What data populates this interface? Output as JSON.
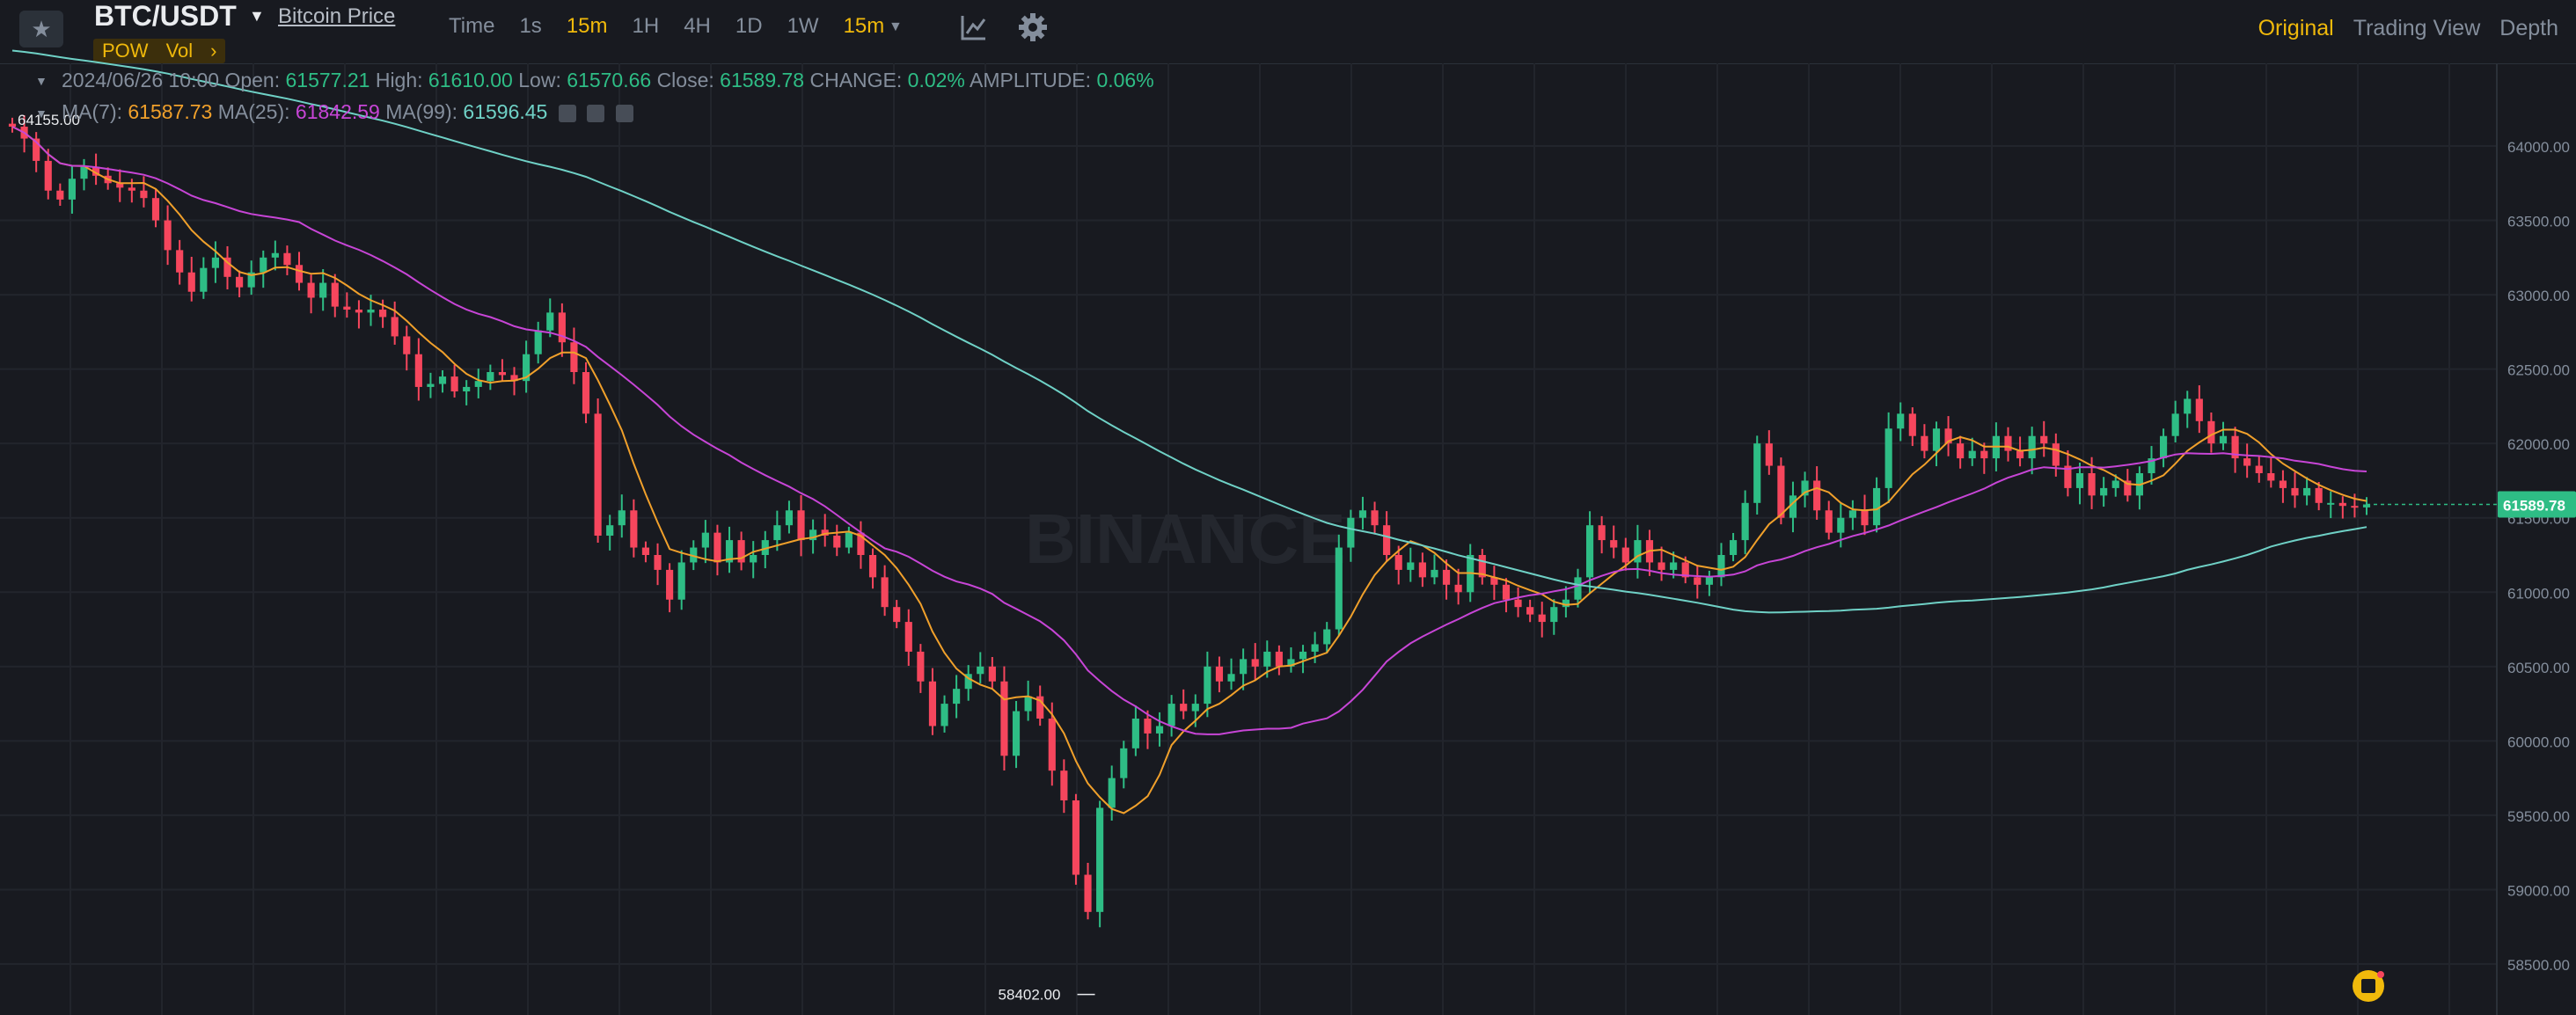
{
  "header": {
    "pair": "BTC/USDT",
    "pair_link": "Bitcoin Price",
    "tags": [
      "POW",
      "Vol",
      "›"
    ],
    "intervals": [
      "Time",
      "1s",
      "15m",
      "1H",
      "4H",
      "1D",
      "1W",
      "15m"
    ],
    "active_intervals": [
      2,
      7
    ],
    "views": [
      "Original",
      "Trading View",
      "Depth"
    ],
    "active_view": 0
  },
  "ohlc": {
    "date": "2024/06/26 10:00",
    "open_label": "Open:",
    "open": "61577.21",
    "high_label": "High:",
    "high": "61610.00",
    "low_label": "Low:",
    "low": "61570.66",
    "close_label": "Close:",
    "close": "61589.78",
    "change_label": "CHANGE:",
    "change": "0.02%",
    "amplitude_label": "AMPLITUDE:",
    "amplitude": "0.06%"
  },
  "ma": {
    "ma7_label": "MA(7):",
    "ma7": "61587.73",
    "ma25_label": "MA(25):",
    "ma25": "61842.59",
    "ma99_label": "MA(99):",
    "ma99": "61596.45"
  },
  "chart_data": {
    "type": "candlestick",
    "interval": "15m",
    "y_ticks": [
      64000,
      63500,
      63000,
      62500,
      62000,
      61500,
      61000,
      60500,
      60000,
      59500,
      59000,
      58500
    ],
    "y_tick_labels": [
      "64000.00",
      "63500.00",
      "63000.00",
      "62500.00",
      "62000.00",
      "61500.00",
      "61000.00",
      "60500.00",
      "60000.00",
      "59500.00",
      "59000.00",
      "58500.00"
    ],
    "ylim": [
      58250,
      64500
    ],
    "current_price": 61589.78,
    "current_price_label": "61589.78",
    "low_marker": {
      "value": 58402.0,
      "label": "58402.00"
    },
    "high_marker": {
      "label": "64155.00"
    },
    "watermark": "BINANCE",
    "ma_colors": {
      "ma7": "#f0a02b",
      "ma25": "#c745d6",
      "ma99": "#6fd1c6"
    },
    "up_color": "#2ebd85",
    "down_color": "#f6465d",
    "closes": [
      64130,
      64050,
      63900,
      63700,
      63640,
      63780,
      63860,
      63800,
      63750,
      63720,
      63700,
      63650,
      63500,
      63300,
      63150,
      63020,
      63180,
      63250,
      63120,
      63050,
      63150,
      63250,
      63280,
      63200,
      63080,
      62980,
      63080,
      62920,
      62900,
      62880,
      62900,
      62850,
      62720,
      62600,
      62380,
      62400,
      62450,
      62350,
      62380,
      62420,
      62480,
      62460,
      62420,
      62600,
      62760,
      62880,
      62680,
      62480,
      62200,
      61380,
      61450,
      61550,
      61300,
      61250,
      61150,
      60950,
      61200,
      61300,
      61400,
      61200,
      61350,
      61200,
      61250,
      61350,
      61450,
      61550,
      61350,
      61420,
      61380,
      61300,
      61400,
      61250,
      61100,
      60900,
      60800,
      60600,
      60400,
      60100,
      60250,
      60350,
      60450,
      60500,
      60400,
      59900,
      60200,
      60300,
      60150,
      59800,
      59600,
      59100,
      58850,
      59550,
      59750,
      59950,
      60150,
      60050,
      60100,
      60250,
      60200,
      60250,
      60500,
      60400,
      60450,
      60550,
      60500,
      60600,
      60500,
      60550,
      60600,
      60650,
      60750,
      61300,
      61500,
      61550,
      61450,
      61250,
      61150,
      61200,
      61100,
      61150,
      61050,
      61000,
      61250,
      61100,
      61050,
      60950,
      60900,
      60850,
      60800,
      60900,
      60950,
      61100,
      61450,
      61350,
      61300,
      61200,
      61350,
      61200,
      61150,
      61200,
      61100,
      61050,
      61100,
      61250,
      61350,
      61600,
      62000,
      61850,
      61500,
      61650,
      61750,
      61550,
      61400,
      61500,
      61550,
      61450,
      61700,
      62100,
      62200,
      62050,
      61950,
      62100,
      62000,
      61900,
      61950,
      61900,
      62050,
      61950,
      61900,
      62050,
      62000,
      61850,
      61700,
      61800,
      61650,
      61700,
      61750,
      61650,
      61800,
      61900,
      62050,
      62200,
      62300,
      62150,
      62000,
      62050,
      61900,
      61850,
      61800,
      61750,
      61700,
      61650,
      61700,
      61600,
      61600,
      61580,
      61570,
      61590
    ]
  }
}
